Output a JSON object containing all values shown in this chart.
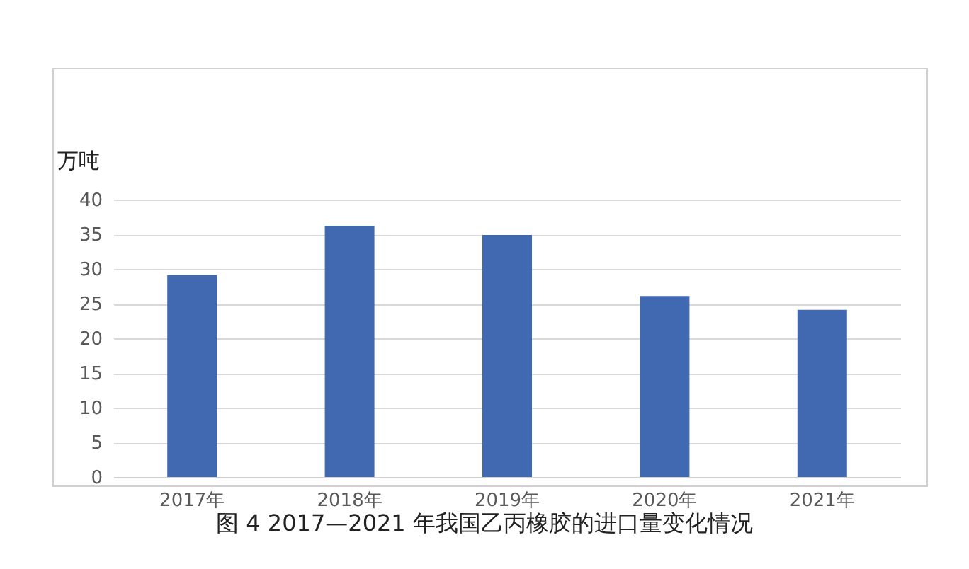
{
  "chart_data": {
    "type": "bar",
    "title": "图 4  2017—2021 年我国乙丙橡胶的进口量变化情况",
    "ylabel": "万吨",
    "categories": [
      "2017年",
      "2018年",
      "2019年",
      "2020年",
      "2021年"
    ],
    "values": [
      29.1,
      36.2,
      34.9,
      26.1,
      24.1
    ],
    "color": "#4169b1",
    "ylim": [
      0,
      40
    ],
    "yticks": [
      0,
      5,
      10,
      15,
      20,
      25,
      30,
      35,
      40
    ],
    "grid": "y"
  }
}
